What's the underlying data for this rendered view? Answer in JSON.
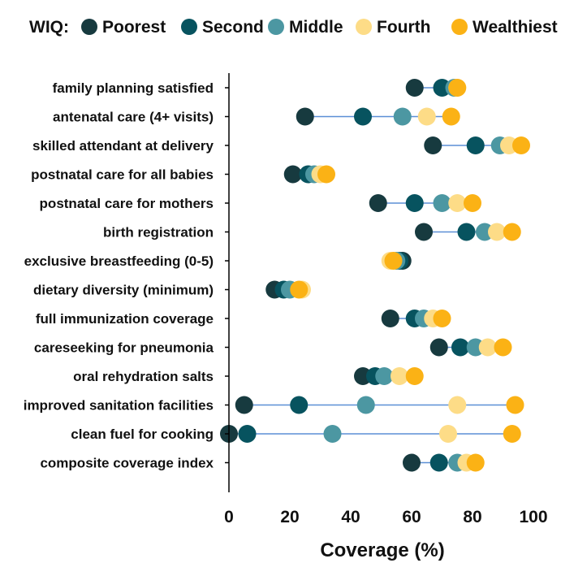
{
  "chart_data": {
    "type": "scatter",
    "legend": {
      "title": "WIQ:",
      "placement": "top"
    },
    "xlabel": "Coverage (%)",
    "xlim": [
      0,
      100
    ],
    "xticks": [
      "0",
      "20",
      "40",
      "60",
      "80",
      "100"
    ],
    "grid": false,
    "categories": [
      "family planning satisfied",
      "antenatal care (4+ visits)",
      "skilled attendant at delivery",
      "postnatal care for all babies",
      "postnatal care for mothers",
      "birth registration",
      "exclusive breastfeeding (0-5)",
      "dietary diversity (minimum)",
      "full immunization coverage",
      "careseeking for pneumonia",
      "oral rehydration salts",
      "improved sanitation facilities",
      "clean fuel for cooking",
      "composite coverage index"
    ],
    "series": [
      {
        "name": "Poorest",
        "color": "#173a3f",
        "values": [
          61,
          25,
          67,
          21,
          49,
          64,
          57,
          15,
          53,
          69,
          44,
          5,
          0,
          60
        ]
      },
      {
        "name": "Second",
        "color": "#07535f",
        "values": [
          70,
          44,
          81,
          26,
          61,
          78,
          56,
          18,
          61,
          76,
          48,
          23,
          6,
          69
        ]
      },
      {
        "name": "Middle",
        "color": "#4c97a2",
        "values": [
          74,
          57,
          89,
          28,
          70,
          84,
          55,
          20,
          64,
          81,
          51,
          45,
          34,
          75
        ]
      },
      {
        "name": "Fourth",
        "color": "#fddc87",
        "values": [
          75,
          65,
          92,
          30,
          75,
          88,
          53,
          24,
          67,
          85,
          56,
          75,
          72,
          78
        ]
      },
      {
        "name": "Wealthiest",
        "color": "#fbb215",
        "values": [
          75,
          73,
          96,
          32,
          80,
          93,
          54,
          23,
          70,
          90,
          61,
          94,
          93,
          81
        ]
      }
    ],
    "connector_color": "#5b8fd6"
  }
}
